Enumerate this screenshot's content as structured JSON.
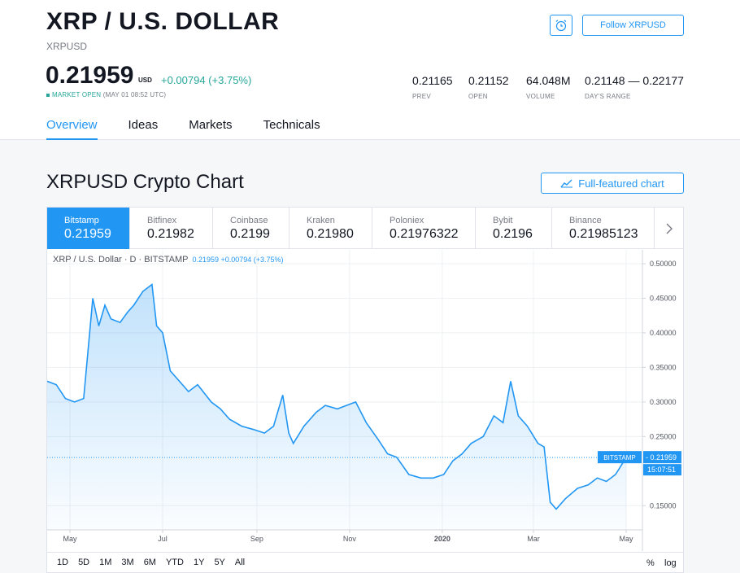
{
  "header": {
    "title": "XRP / U.S. DOLLAR",
    "ticker": "XRPUSD",
    "follow_label": "Follow XRPUSD",
    "price": "0.21959",
    "currency": "USD",
    "change": "+0.00794 (+3.75%)",
    "market_status": "MARKET OPEN",
    "market_time": "(MAY 01 08:52 UTC)",
    "stats": [
      {
        "value": "0.21165",
        "label": "PREV"
      },
      {
        "value": "0.21152",
        "label": "OPEN"
      },
      {
        "value": "64.048M",
        "label": "VOLUME"
      },
      {
        "value": "0.21148 — 0.22177",
        "label": "DAY'S RANGE"
      }
    ],
    "tabs": [
      "Overview",
      "Ideas",
      "Markets",
      "Technicals"
    ]
  },
  "section": {
    "title": "XRPUSD Crypto Chart",
    "full_chart_label": "Full-featured chart"
  },
  "exchanges": [
    {
      "name": "Bitstamp",
      "price": "0.21959"
    },
    {
      "name": "Bitfinex",
      "price": "0.21982"
    },
    {
      "name": "Coinbase",
      "price": "0.2199"
    },
    {
      "name": "Kraken",
      "price": "0.21980"
    },
    {
      "name": "Poloniex",
      "price": "0.21976322"
    },
    {
      "name": "Bybit",
      "price": "0.2196"
    },
    {
      "name": "Binance",
      "price": "0.21985123"
    }
  ],
  "legend": {
    "symbol": "XRP / U.S. Dollar · D · BITSTAMP",
    "value": "0.21959 +0.00794 (+3.75%)"
  },
  "ranges": [
    "1D",
    "5D",
    "1M",
    "3M",
    "6M",
    "YTD",
    "1Y",
    "5Y",
    "All"
  ],
  "scale_options": [
    "%",
    "log"
  ],
  "colors": {
    "accent": "#2196f3",
    "positive": "#26a69a"
  },
  "chart_data": {
    "type": "area",
    "title": "",
    "xlabel": "",
    "ylabel": "",
    "x_ticks": [
      "May",
      "Jul",
      "Sep",
      "Nov",
      "2020",
      "Mar",
      "May"
    ],
    "y_ticks": [
      "0.50000",
      "0.45000",
      "0.40000",
      "0.35000",
      "0.30000",
      "0.25000",
      "0.15000"
    ],
    "ylim": [
      0.115,
      0.52
    ],
    "grid": true,
    "series": [
      {
        "x": [
          "2019-04-16",
          "2019-04-22",
          "2019-04-28",
          "2019-05-04",
          "2019-05-10",
          "2019-05-16",
          "2019-05-20",
          "2019-05-24",
          "2019-05-28",
          "2019-06-03",
          "2019-06-08",
          "2019-06-12",
          "2019-06-18",
          "2019-06-24",
          "2019-06-27",
          "2019-07-01",
          "2019-07-06",
          "2019-07-12",
          "2019-07-18",
          "2019-07-24",
          "2019-08-02",
          "2019-08-08",
          "2019-08-14",
          "2019-08-22",
          "2019-08-30",
          "2019-09-06",
          "2019-09-12",
          "2019-09-18",
          "2019-09-22",
          "2019-09-25",
          "2019-10-02",
          "2019-10-10",
          "2019-10-16",
          "2019-10-24",
          "2019-10-30",
          "2019-11-05",
          "2019-11-12",
          "2019-11-20",
          "2019-11-26",
          "2019-12-02",
          "2019-12-10",
          "2019-12-18",
          "2019-12-26",
          "2020-01-02",
          "2020-01-08",
          "2020-01-14",
          "2020-01-20",
          "2020-01-28",
          "2020-02-04",
          "2020-02-10",
          "2020-02-15",
          "2020-02-20",
          "2020-02-26",
          "2020-03-04",
          "2020-03-08",
          "2020-03-12",
          "2020-03-16",
          "2020-03-22",
          "2020-03-30",
          "2020-04-06",
          "2020-04-12",
          "2020-04-18",
          "2020-04-24",
          "2020-05-01"
        ],
        "values": [
          0.33,
          0.325,
          0.305,
          0.3,
          0.305,
          0.45,
          0.41,
          0.44,
          0.42,
          0.415,
          0.43,
          0.44,
          0.46,
          0.47,
          0.41,
          0.4,
          0.345,
          0.33,
          0.315,
          0.325,
          0.3,
          0.29,
          0.275,
          0.265,
          0.26,
          0.255,
          0.265,
          0.31,
          0.255,
          0.24,
          0.265,
          0.285,
          0.295,
          0.29,
          0.295,
          0.3,
          0.27,
          0.245,
          0.225,
          0.22,
          0.195,
          0.19,
          0.19,
          0.195,
          0.215,
          0.225,
          0.24,
          0.25,
          0.28,
          0.27,
          0.33,
          0.28,
          0.265,
          0.24,
          0.235,
          0.155,
          0.145,
          0.16,
          0.175,
          0.18,
          0.19,
          0.185,
          0.195,
          0.21959
        ]
      }
    ],
    "last_price": "0.21959",
    "last_price_label": "BITSTAMP",
    "countdown": "15:07:51"
  }
}
